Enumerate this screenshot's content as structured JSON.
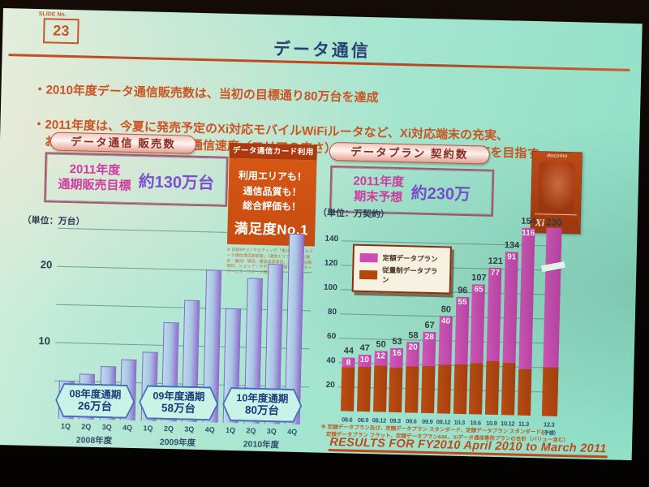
{
  "slide": {
    "slide_no_label": "SLIDE No.",
    "slide_no": "23",
    "title": "データ通信",
    "bullets": [
      "・2010年度データ通信販売数は、当初の目標通り80万台を達成",
      "・2011年度は、今夏に発売予定のXi対応モバイルWiFiルータなど、Xi対応端末の充実、\n　およびネットワーク品質（通信速度／エリアの広さ）を武器に、約130万台の販売を目指す"
    ]
  },
  "sales_section": {
    "banner": "データ通信 販売数",
    "target_line1": "2011年度",
    "target_line2": "通期販売目標",
    "target_value": "約130万台",
    "unit_label": "（単位：万台）"
  },
  "satisfaction_box": {
    "header": "データ通信カード利用",
    "lines": [
      "利用エリアも！",
      "通信品質も！",
      "総合評価も！"
    ],
    "highlight": "満足度No.1",
    "footnote": "※ 日経BPコンサルティング「第2回 モバイルデータ通信満足度調査」（通信エリアの広さ（屋外・屋内）項目、通信品質項目、通信中の切断項目、ショップ・サポート対応項目、アフターサービス・サポート項目）より"
  },
  "plan_section": {
    "banner": "データプラン 契約数",
    "forecast_line1": "2011年度",
    "forecast_line2": "期末予想",
    "forecast_value": "約230万",
    "unit_label": "（単位：万契約）",
    "poster_brand": "docomo",
    "poster_logo": "Xi",
    "footnote": "※ 定額データプラン及び、定額データプラン スタンダード、定額データプラン スタンダード2、\n　定額データプラン フラット、定額データプラン64K、Xiデータ通信専用プランの合計（バリュー含む）"
  },
  "footer": {
    "results_text": "RESULTS FOR FY2010  April 2010 to March 2011"
  },
  "colors": {
    "slide_bg": "#a4e5cf",
    "orange_text": "#cb5522",
    "title_navy": "#2a4273",
    "flat_rate_magenta": "#cf4ab2",
    "metered_orange": "#b4470e",
    "sales_bar_blue": "#a9c4e4",
    "sales_bar_purple": "#9070cc"
  },
  "chart_data": [
    {
      "type": "bar",
      "title": "データ通信 販売数",
      "unit": "万台",
      "categories": [
        "1Q",
        "2Q",
        "3Q",
        "4Q",
        "1Q",
        "2Q",
        "3Q",
        "4Q",
        "1Q",
        "2Q",
        "3Q",
        "4Q"
      ],
      "values": [
        5,
        6,
        7,
        8,
        9,
        13,
        16,
        20,
        15,
        19,
        21,
        25
      ],
      "yticks": [
        10,
        20
      ],
      "gridlines": [
        5,
        10,
        15,
        20,
        25
      ],
      "ylim": [
        0,
        27
      ],
      "grid_on": true,
      "year_groups": [
        {
          "year": "2008年度",
          "annual_label": "08年度通期",
          "annual_total": "26万台"
        },
        {
          "year": "2009年度",
          "annual_label": "09年度通期",
          "annual_total": "58万台"
        },
        {
          "year": "2010年度",
          "annual_label": "10年度通期",
          "annual_total": "80万台"
        }
      ]
    },
    {
      "type": "stacked-bar",
      "title": "データプラン 契約数",
      "unit": "万契約",
      "categories": [
        "08.6",
        "08.9",
        "08.12",
        "09.3",
        "09.6",
        "09.9",
        "09.12",
        "10.3",
        "10.6",
        "10.9",
        "10.12",
        "11.3",
        "12.3"
      ],
      "forecast_category_note": "（予想）",
      "broken_bar_index": 12,
      "series": [
        {
          "name": "定額データプラン",
          "color": "#cf4ab2",
          "values": [
            8,
            10,
            12,
            16,
            20,
            28,
            40,
            55,
            65,
            77,
            91,
            116,
            190
          ]
        },
        {
          "name": "従量制データプラン",
          "color": "#b4470e",
          "values": [
            36,
            37,
            38,
            37,
            38,
            39,
            40,
            41,
            42,
            44,
            43,
            38,
            40
          ]
        }
      ],
      "totals": [
        44,
        47,
        50,
        53,
        58,
        67,
        80,
        96,
        107,
        121,
        134,
        154,
        230
      ],
      "shown_fixed_rate_labels": [
        8,
        10,
        12,
        16,
        20,
        28,
        40,
        55,
        65,
        77,
        91,
        116
      ],
      "yticks": [
        20,
        40,
        60,
        80,
        100,
        120,
        140
      ],
      "ylim": [
        0,
        160
      ],
      "grid_on": true,
      "legend_position": "top-left"
    }
  ]
}
